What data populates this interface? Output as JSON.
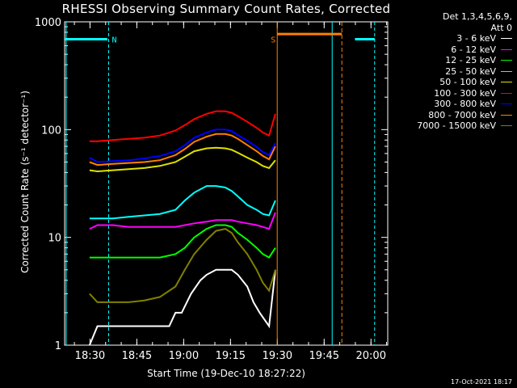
{
  "chart_data": {
    "type": "line",
    "title": "RHESSI Observing Summary Count Rates, Corrected",
    "xlabel": "Start Time (19-Dec-10 18:27:22)",
    "ylabel": "Corrected Count Rate (s⁻¹ detector⁻¹)",
    "ylog": true,
    "ylim": [
      1,
      1000
    ],
    "xlim_minutes_after_start": [
      -5.5,
      98.0
    ],
    "x_ticks": [
      {
        "minutes": 2.63,
        "label": "18:30"
      },
      {
        "minutes": 17.63,
        "label": "18:45"
      },
      {
        "minutes": 32.63,
        "label": "19:00"
      },
      {
        "minutes": 47.63,
        "label": "19:15"
      },
      {
        "minutes": 62.63,
        "label": "19:30"
      },
      {
        "minutes": 77.63,
        "label": "19:45"
      },
      {
        "minutes": 92.63,
        "label": "20:00"
      }
    ],
    "y_ticks": [
      {
        "value": 1,
        "label": "1"
      },
      {
        "value": 10,
        "label": "10"
      },
      {
        "value": 100,
        "label": "100"
      },
      {
        "value": 1000,
        "label": "1000"
      }
    ],
    "legend_header": [
      "Det 1,3,4,5,6,9,",
      "Att 0"
    ],
    "legend_position": "right",
    "grid": false,
    "series": [
      {
        "name": "3 - 6 keV",
        "color": "#ffffff",
        "x": [
          2.5,
          5.0,
          10.0,
          15.0,
          20.0,
          22.0,
          25.0,
          28.0,
          30.0,
          32.0,
          35.0,
          38.0,
          40.0,
          43.0,
          46.0,
          48.0,
          50.0,
          53.0,
          55.0,
          57.0,
          60.0,
          62.0
        ],
        "y": [
          1.0,
          1.5,
          1.5,
          1.5,
          1.5,
          1.5,
          1.5,
          1.5,
          2.0,
          2.0,
          3.0,
          4.0,
          4.5,
          5.0,
          5.0,
          5.0,
          4.5,
          3.5,
          2.5,
          2.0,
          1.5,
          5.0
        ]
      },
      {
        "name": "6 - 12 keV",
        "color": "#ff00ff",
        "x": [
          2.5,
          5.0,
          10.0,
          15.0,
          20.0,
          25.0,
          30.0,
          33.0,
          36.0,
          40.0,
          43.0,
          46.0,
          48.0,
          50.0,
          53.0,
          56.0,
          58.0,
          60.0,
          62.0
        ],
        "y": [
          12,
          13,
          13,
          12.5,
          12.5,
          12.5,
          12.5,
          13,
          13.5,
          14,
          14.5,
          14.5,
          14.5,
          14,
          13.5,
          13,
          12.5,
          12,
          17
        ]
      },
      {
        "name": "12 - 25 keV",
        "color": "#00ff00",
        "x": [
          2.5,
          5.0,
          10.0,
          15.0,
          20.0,
          25.0,
          30.0,
          33.0,
          36.0,
          40.0,
          43.0,
          46.0,
          48.0,
          50.0,
          53.0,
          56.0,
          58.0,
          60.0,
          62.0
        ],
        "y": [
          6.5,
          6.5,
          6.5,
          6.5,
          6.5,
          6.5,
          7.0,
          8.0,
          10.0,
          12.0,
          13.0,
          13.0,
          12.5,
          11.0,
          9.5,
          8.0,
          7.0,
          6.5,
          8.0
        ]
      },
      {
        "name": "25 - 50 keV",
        "color": "#00ffff",
        "x": [
          2.5,
          5.0,
          10.0,
          15.0,
          20.0,
          25.0,
          30.0,
          33.0,
          36.0,
          40.0,
          43.0,
          46.0,
          48.0,
          50.0,
          53.0,
          56.0,
          58.0,
          60.0,
          62.0
        ],
        "y": [
          15,
          15,
          15,
          15.5,
          16,
          16.5,
          18,
          22,
          26,
          30,
          30,
          29,
          27,
          24,
          20,
          18,
          16.5,
          16,
          22
        ]
      },
      {
        "name": "50 - 100 keV",
        "color": "#e0e000",
        "x": [
          2.5,
          5.0,
          10.0,
          15.0,
          20.0,
          25.0,
          30.0,
          33.0,
          36.0,
          40.0,
          43.0,
          46.0,
          48.0,
          50.0,
          53.0,
          56.0,
          58.0,
          60.0,
          62.0
        ],
        "y": [
          42,
          41,
          42,
          43,
          44,
          46,
          50,
          56,
          63,
          67,
          68,
          67,
          65,
          61,
          55,
          50,
          46,
          44,
          52
        ]
      },
      {
        "name": "100 - 300 keV",
        "color": "#ff0000",
        "x": [
          2.5,
          5.0,
          10.0,
          15.0,
          20.0,
          25.0,
          30.0,
          33.0,
          36.0,
          40.0,
          43.0,
          46.0,
          48.0,
          50.0,
          53.0,
          56.0,
          58.0,
          60.0,
          62.0
        ],
        "y": [
          78,
          78,
          80,
          82,
          84,
          88,
          98,
          110,
          125,
          140,
          148,
          148,
          143,
          133,
          118,
          104,
          94,
          88,
          140
        ]
      },
      {
        "name": "300 - 800 keV",
        "color": "#0000ff",
        "x": [
          2.5,
          5.0,
          10.0,
          15.0,
          20.0,
          25.0,
          30.0,
          33.0,
          36.0,
          40.0,
          43.0,
          46.0,
          48.0,
          50.0,
          53.0,
          56.0,
          58.0,
          60.0,
          62.0
        ],
        "y": [
          55,
          50,
          51,
          52,
          54,
          57,
          63,
          72,
          84,
          94,
          100,
          100,
          97,
          89,
          79,
          69,
          62,
          58,
          75
        ]
      },
      {
        "name": "800 - 7000 keV",
        "color": "#ff8000",
        "x": [
          2.5,
          5.0,
          10.0,
          15.0,
          20.0,
          25.0,
          30.0,
          33.0,
          36.0,
          40.0,
          43.0,
          46.0,
          48.0,
          50.0,
          53.0,
          56.0,
          58.0,
          60.0,
          62.0
        ],
        "y": [
          50,
          47,
          48,
          49,
          50,
          52,
          58,
          66,
          77,
          86,
          91,
          91,
          88,
          82,
          72,
          63,
          57,
          53,
          70
        ]
      },
      {
        "name": "7000 - 15000 keV",
        "color": "#808000",
        "x": [
          2.5,
          5.0,
          10.0,
          15.0,
          20.0,
          25.0,
          30.0,
          33.0,
          36.0,
          40.0,
          43.0,
          46.0,
          48.0,
          50.0,
          53.0,
          56.0,
          58.0,
          60.0,
          62.0
        ],
        "y": [
          3.0,
          2.5,
          2.5,
          2.5,
          2.6,
          2.8,
          3.5,
          5.0,
          7.0,
          9.5,
          11.5,
          12.0,
          11.0,
          9.0,
          7.0,
          5.0,
          3.8,
          3.2,
          5.0
        ]
      }
    ],
    "annotations": [
      {
        "label": "N",
        "color": "#00ffff",
        "x": 8.6
      },
      {
        "label": "S",
        "color": "#ff8000",
        "x": 62.6
      }
    ]
  },
  "footer": "17-Oct-2021 18:17"
}
